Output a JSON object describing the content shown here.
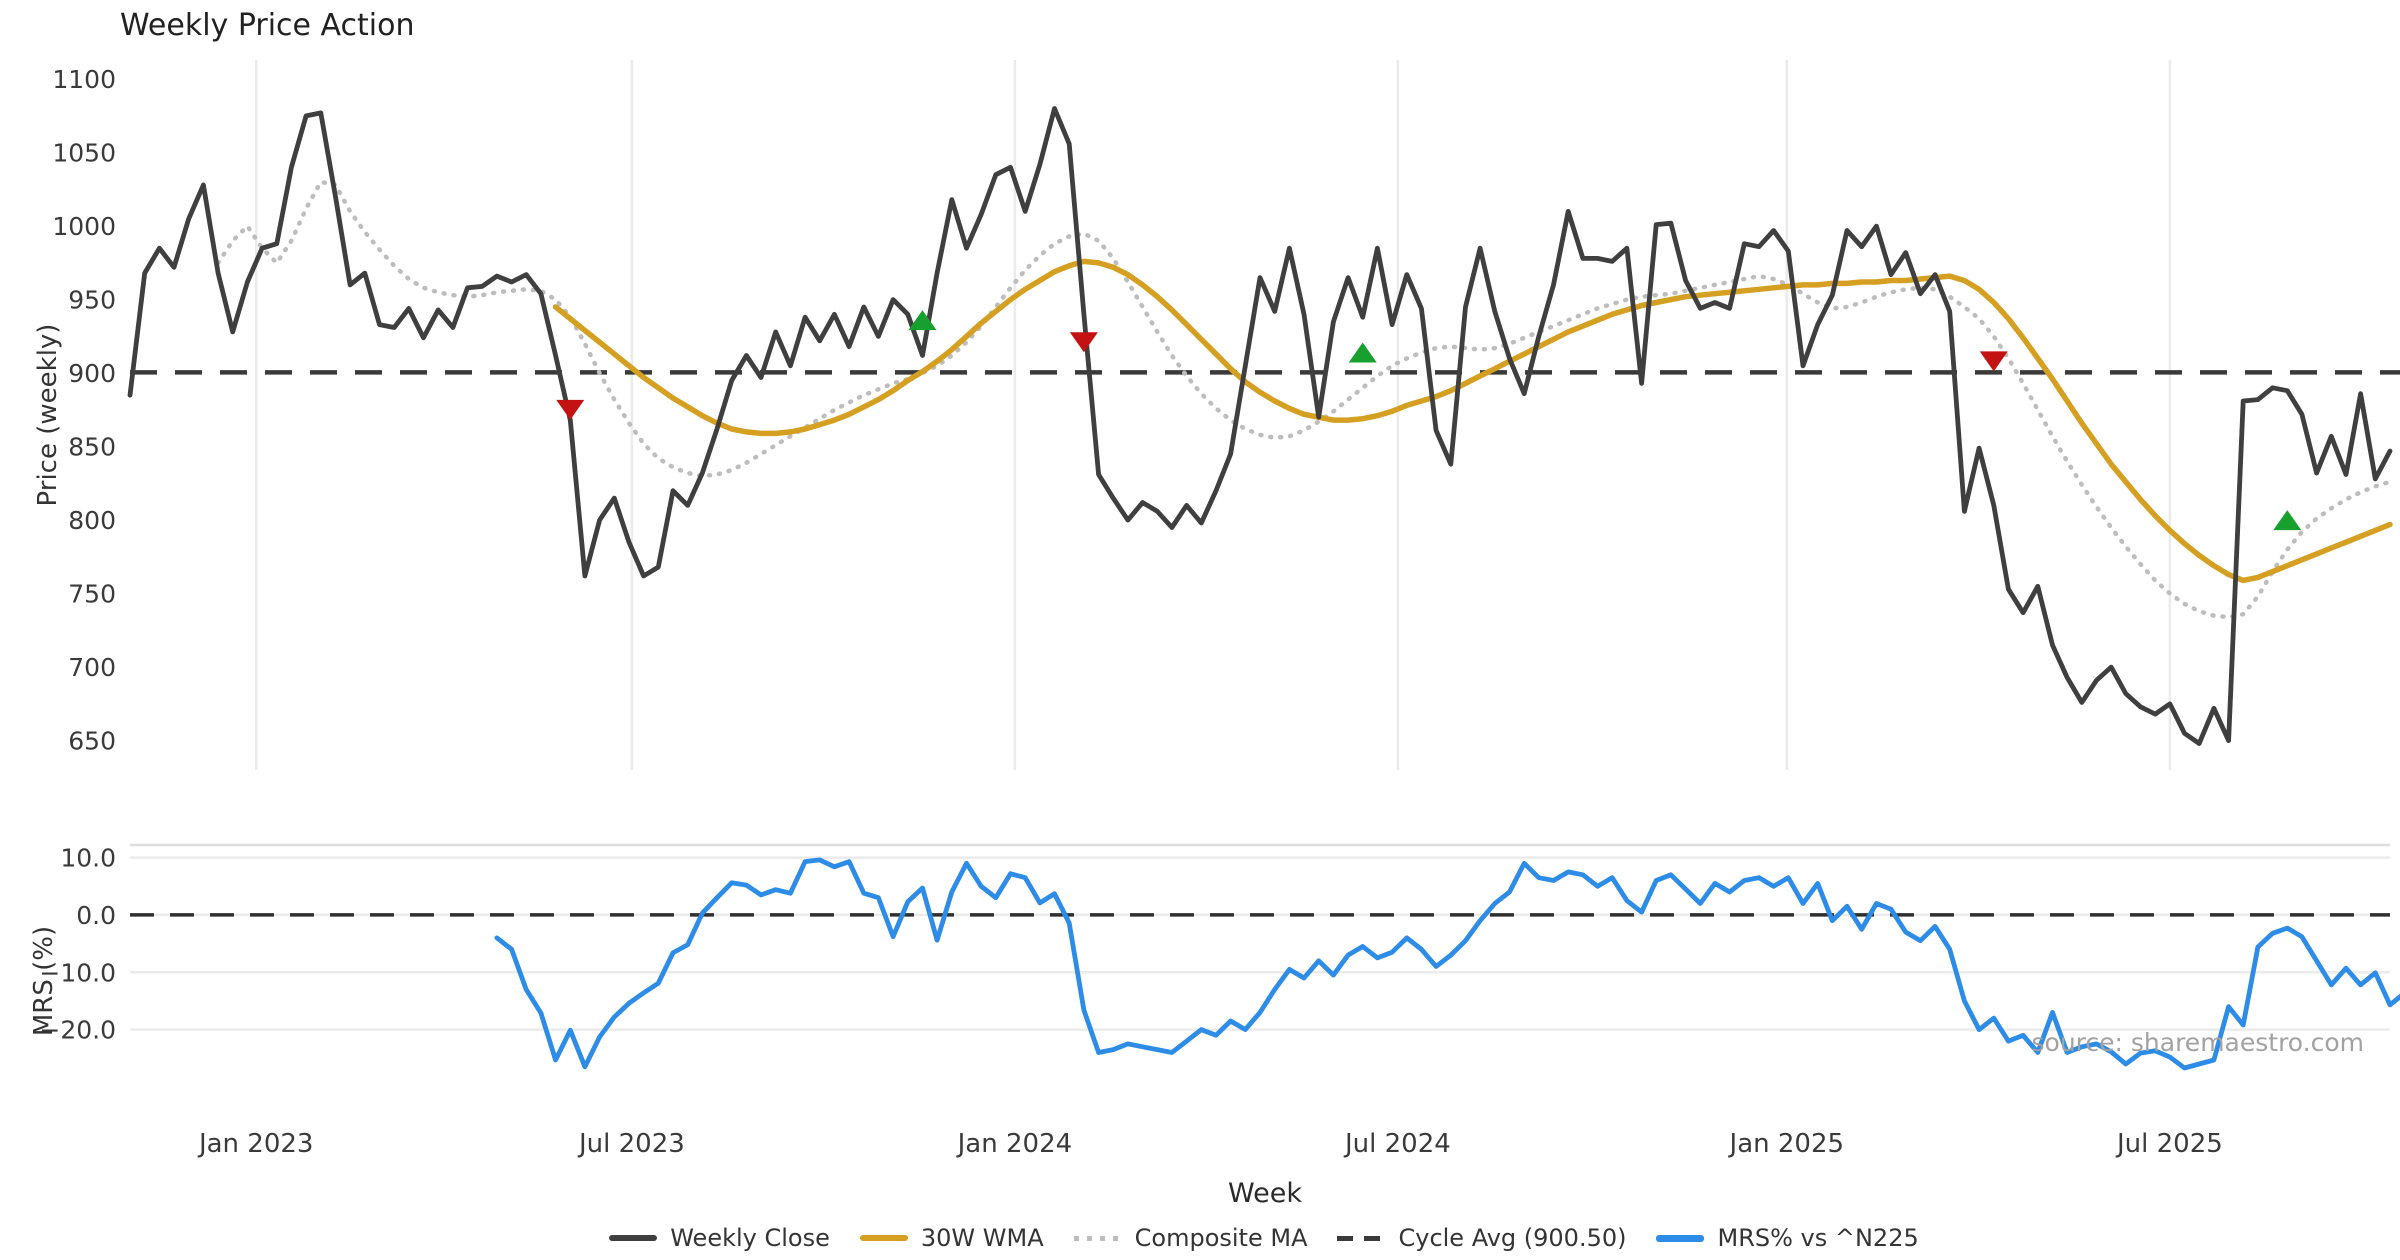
{
  "title": "Weekly Price Action",
  "source_note": "source: sharemaestro.com",
  "colors": {
    "weekly_close": "#3f3f3f",
    "wma": "#d5a021",
    "composite": "#bdbdbd",
    "cycle_avg": "#3a3a3a",
    "mrs": "#2d8ce8",
    "buy_marker": "#17a02e",
    "sell_marker": "#c41212",
    "gridline": "#ebebeb",
    "tick_text": "#3a3a3a"
  },
  "legend": [
    {
      "key": "close",
      "label": "Weekly Close"
    },
    {
      "key": "wma",
      "label": "30W WMA"
    },
    {
      "key": "composite",
      "label": "Composite MA"
    },
    {
      "key": "cycle",
      "label": "Cycle Avg (900.50)"
    },
    {
      "key": "mrs",
      "label": "MRS% vs ^N225"
    }
  ],
  "chart_data": [
    {
      "type": "line",
      "panel": "price",
      "title": "Weekly Price Action",
      "ylabel": "Price (weekly)",
      "xlabel": "Week",
      "ylim": [
        630,
        1113
      ],
      "grid": "vertical-only",
      "yticks": [
        {
          "v": 1100,
          "label": "1100"
        },
        {
          "v": 1050,
          "label": "1050"
        },
        {
          "v": 1000,
          "label": "1000"
        },
        {
          "v": 950,
          "label": "950"
        },
        {
          "v": 900,
          "label": "900"
        },
        {
          "v": 850,
          "label": "850"
        },
        {
          "v": 800,
          "label": "800"
        },
        {
          "v": 750,
          "label": "750"
        },
        {
          "v": 700,
          "label": "700"
        },
        {
          "v": 650,
          "label": "650"
        }
      ],
      "xticks": [
        {
          "week": 8.6,
          "label": "Jan 2023"
        },
        {
          "week": 34.2,
          "label": "Jul 2023"
        },
        {
          "week": 60.3,
          "label": "Jan 2024"
        },
        {
          "week": 86.4,
          "label": "Jul 2024"
        },
        {
          "week": 112.9,
          "label": "Jan 2025"
        },
        {
          "week": 139.0,
          "label": "Jul 2025"
        }
      ],
      "total_weeks": 154,
      "cycle_avg": 900.5,
      "series": [
        {
          "name": "Weekly Close",
          "style": "solid",
          "start_week": 0,
          "values": [
            885,
            968,
            985,
            972,
            1005,
            1028,
            968,
            928,
            962,
            985,
            988,
            1040,
            1075,
            1077,
            1020,
            960,
            968,
            933,
            931,
            944,
            924,
            943,
            931,
            958,
            959,
            966,
            962,
            967,
            954,
            912,
            868,
            762,
            800,
            815,
            785,
            762,
            768,
            820,
            810,
            832,
            862,
            895,
            912,
            897,
            928,
            905,
            938,
            922,
            940,
            918,
            945,
            925,
            950,
            940,
            912,
            968,
            1018,
            985,
            1008,
            1035,
            1040,
            1010,
            1042,
            1080,
            1056,
            940,
            831,
            815,
            800,
            812,
            806,
            795,
            810,
            798,
            820,
            845,
            905,
            965,
            942,
            985,
            940,
            870,
            935,
            965,
            938,
            985,
            933,
            967,
            944,
            861,
            838,
            945,
            985,
            942,
            910,
            886,
            925,
            960,
            1010,
            978,
            978,
            976,
            985,
            893,
            1001,
            1002,
            963,
            944,
            948,
            944,
            988,
            986,
            997,
            983,
            905,
            933,
            953,
            997,
            986,
            1000,
            967,
            982,
            954,
            967,
            942,
            806,
            849,
            810,
            753,
            737,
            755,
            715,
            693,
            676,
            691,
            700,
            682,
            673,
            668,
            675,
            655,
            648,
            672,
            650,
            881,
            882,
            890,
            888,
            872,
            832,
            857,
            831,
            886,
            828,
            847
          ]
        },
        {
          "name": "30W WMA",
          "style": "solid",
          "start_week": 29,
          "values": [
            945,
            937,
            929,
            921,
            913,
            905,
            897,
            890,
            883,
            877,
            871,
            866,
            862,
            860,
            859,
            859,
            860,
            862,
            865,
            868,
            872,
            877,
            882,
            888,
            895,
            901,
            908,
            916,
            925,
            934,
            942,
            950,
            957,
            963,
            969,
            973,
            976,
            975,
            972,
            967,
            960,
            952,
            943,
            933,
            923,
            913,
            903,
            894,
            887,
            881,
            876,
            872,
            870,
            868,
            868,
            869,
            871,
            874,
            878,
            881,
            884,
            888,
            893,
            898,
            903,
            908,
            913,
            918,
            923,
            928,
            932,
            936,
            940,
            943,
            946,
            948,
            950,
            952,
            953,
            954,
            955,
            956,
            957,
            958,
            959,
            960,
            960,
            961,
            961,
            962,
            962,
            963,
            963,
            964,
            965,
            966,
            963,
            957,
            948,
            937,
            924,
            910,
            896,
            881,
            866,
            852,
            838,
            826,
            814,
            803,
            793,
            784,
            776,
            769,
            763,
            759,
            761,
            765,
            769,
            773,
            777,
            781,
            785,
            789,
            793,
            797
          ]
        },
        {
          "name": "Composite MA",
          "style": "dotted",
          "start_week": 6,
          "values": [
            975,
            990,
            1000,
            985,
            975,
            990,
            1012,
            1030,
            1028,
            1010,
            996,
            984,
            973,
            964,
            958,
            955,
            953,
            952,
            953,
            955,
            956,
            957,
            956,
            950,
            938,
            920,
            900,
            882,
            866,
            852,
            842,
            836,
            832,
            830,
            831,
            834,
            839,
            845,
            851,
            857,
            863,
            869,
            875,
            880,
            885,
            889,
            893,
            896,
            900,
            905,
            912,
            921,
            932,
            945,
            958,
            970,
            980,
            988,
            993,
            995,
            990,
            978,
            962,
            945,
            928,
            912,
            898,
            886,
            876,
            868,
            862,
            858,
            856,
            857,
            861,
            867,
            874,
            882,
            890,
            898,
            905,
            910,
            914,
            917,
            918,
            917,
            916,
            917,
            920,
            924,
            928,
            932,
            936,
            940,
            944,
            947,
            950,
            952,
            953,
            954,
            956,
            958,
            960,
            962,
            964,
            966,
            964,
            960,
            954,
            948,
            944,
            945,
            948,
            952,
            955,
            957,
            958,
            957,
            952,
            945,
            937,
            925,
            910,
            893,
            875,
            857,
            840,
            824,
            809,
            795,
            782,
            770,
            759,
            750,
            743,
            738,
            735,
            734,
            736,
            748,
            765,
            780,
            792,
            801,
            808,
            814,
            819,
            823,
            826
          ]
        }
      ],
      "markers": {
        "buy": [
          {
            "week": 54,
            "value": 936
          },
          {
            "week": 84,
            "value": 914
          },
          {
            "week": 147,
            "value": 800
          }
        ],
        "sell": [
          {
            "week": 30,
            "value": 875
          },
          {
            "week": 65,
            "value": 921
          },
          {
            "week": 127,
            "value": 908
          }
        ]
      }
    },
    {
      "type": "line",
      "panel": "relative-strength",
      "ylabel": "MRS (%)",
      "ylim": [
        -34.9,
        12.2
      ],
      "grid": "horizontal-only",
      "zero_line_dashed": true,
      "yticks": [
        {
          "v": 10,
          "label": "10.0"
        },
        {
          "v": 0,
          "label": "0.0"
        },
        {
          "v": -10,
          "label": "−10.0"
        },
        {
          "v": -20,
          "label": "−20.0"
        }
      ],
      "series": [
        {
          "name": "MRS% vs ^N225",
          "style": "solid",
          "start_week": 25,
          "values": [
            -4.0,
            -6.0,
            -13.0,
            -17.1,
            -25.3,
            -20.1,
            -26.5,
            -21.3,
            -17.8,
            -15.4,
            -13.6,
            -11.9,
            -6.6,
            -5.2,
            0.3,
            3.0,
            5.6,
            5.2,
            3.5,
            4.4,
            3.8,
            9.3,
            9.6,
            8.4,
            9.3,
            3.8,
            3.0,
            -3.8,
            2.3,
            4.7,
            -4.4,
            4.0,
            9.0,
            5.0,
            3.0,
            7.2,
            6.5,
            2.1,
            3.7,
            -1.4,
            -16.6,
            -24.0,
            -23.5,
            -22.5,
            -23.0,
            -23.5,
            -24.0,
            -22.0,
            -20.0,
            -21.0,
            -18.5,
            -20.0,
            -17.0,
            -13.0,
            -9.5,
            -11.0,
            -8.0,
            -10.5,
            -7.0,
            -5.5,
            -7.5,
            -6.5,
            -4.0,
            -6.0,
            -9.0,
            -7.0,
            -4.5,
            -1.0,
            2.0,
            4.0,
            9.0,
            6.5,
            6.0,
            7.5,
            7.0,
            5.0,
            6.5,
            2.5,
            0.5,
            6.0,
            7.0,
            4.5,
            2.0,
            5.5,
            4.0,
            6.0,
            6.5,
            5.0,
            6.5,
            2.0,
            5.5,
            -1.0,
            1.5,
            -2.5,
            2.0,
            1.0,
            -3.0,
            -4.5,
            -2.0,
            -6.0,
            -15.0,
            -20.0,
            -18.0,
            -22.0,
            -21.0,
            -24.0,
            -17.0,
            -24.0,
            -23.0,
            -22.5,
            -23.9,
            -26.0,
            -24.1,
            -23.7,
            -24.8,
            -26.7,
            -26.0,
            -25.3,
            -16.0,
            -19.2,
            -5.6,
            -3.2,
            -2.3,
            -3.8,
            -8.0,
            -12.2,
            -9.3,
            -12.2,
            -10.1,
            -15.7,
            -13.6
          ]
        }
      ]
    }
  ]
}
